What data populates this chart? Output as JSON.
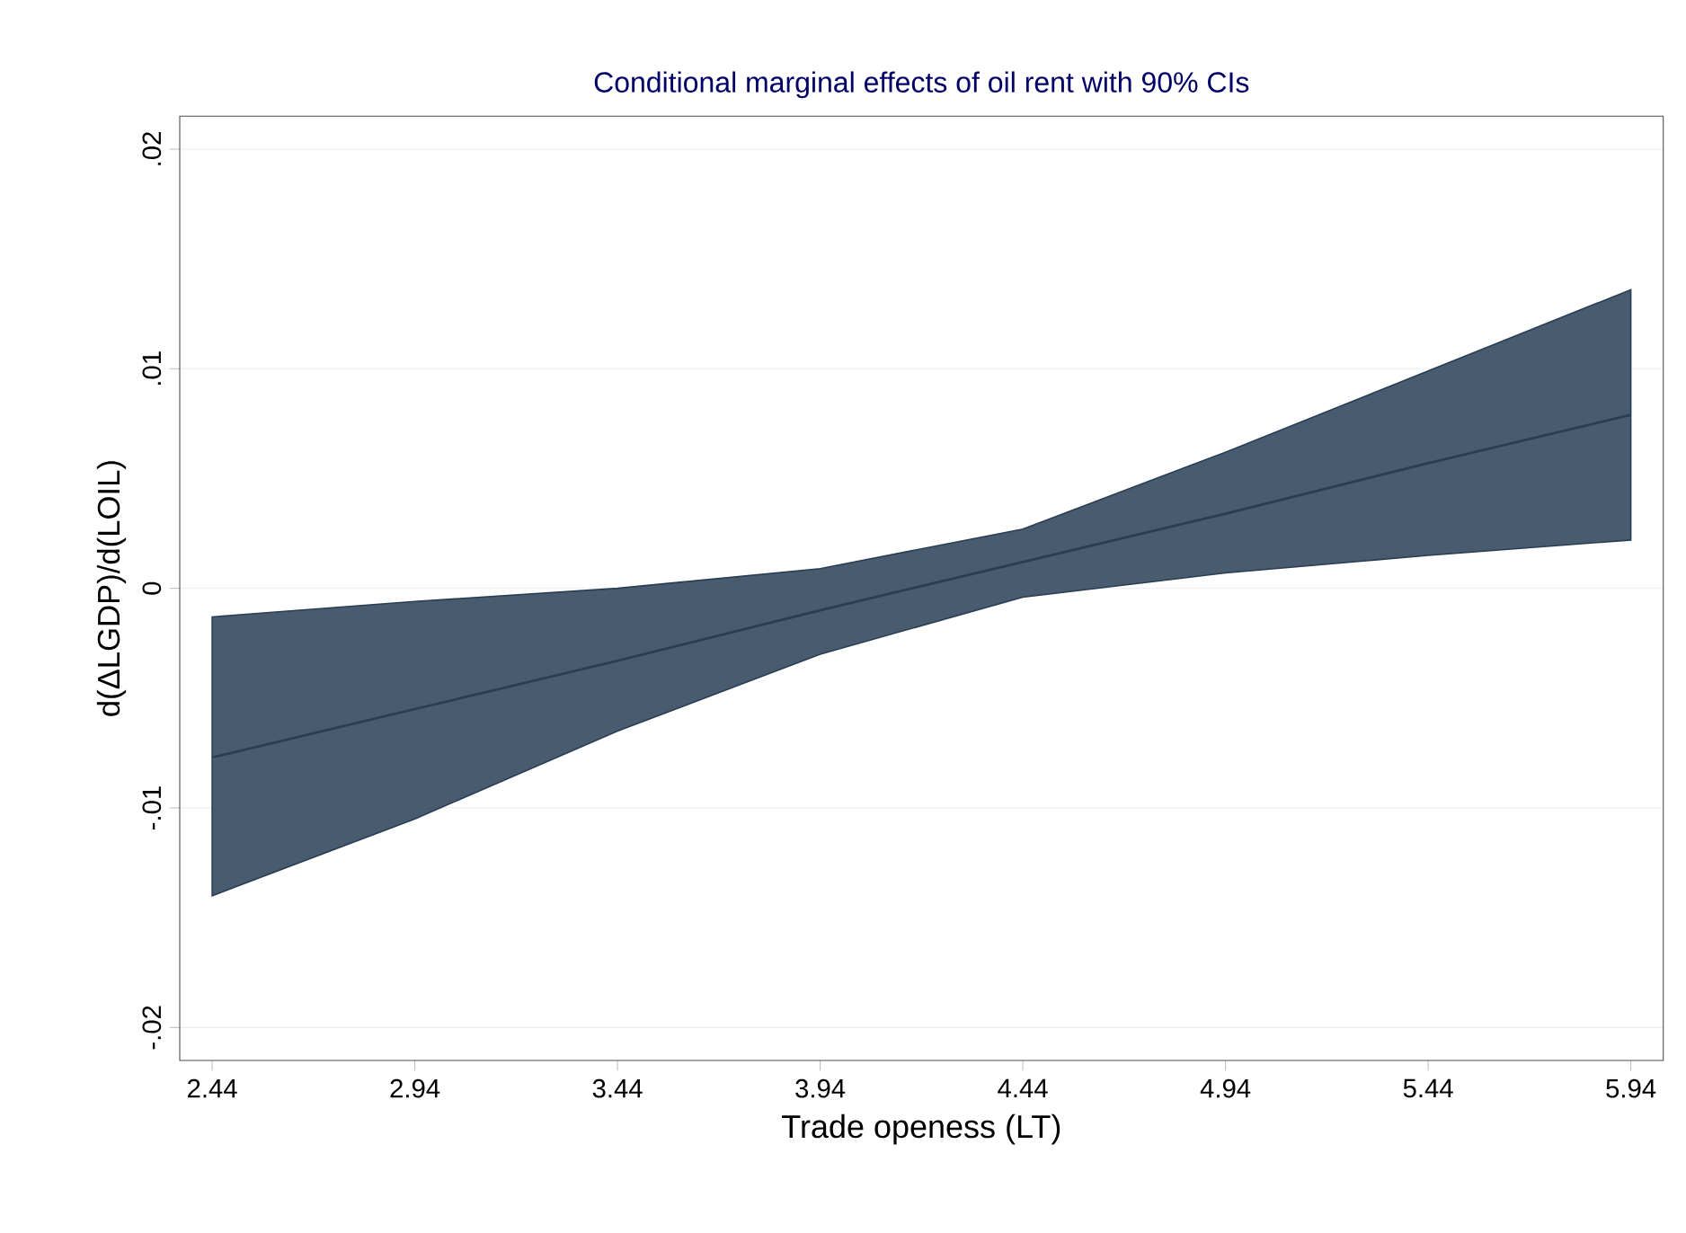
{
  "chart_data": {
    "type": "line",
    "title": "Conditional marginal effects of oil rent with 90% CIs",
    "xlabel": "Trade openess (LT)",
    "ylabel": "d(ΔLGDP)/d(LOIL)",
    "x": [
      2.44,
      2.94,
      3.44,
      3.94,
      4.44,
      4.94,
      5.44,
      5.94
    ],
    "series": [
      {
        "color": "#293e54",
        "values": [
          -0.0077,
          -0.0055,
          -0.0033,
          -0.001,
          0.0012,
          0.0034,
          0.0057,
          0.0079
        ],
        "lower": [
          -0.014,
          -0.0105,
          -0.0065,
          -0.003,
          -0.0004,
          0.0007,
          0.0015,
          0.0022
        ],
        "upper": [
          -0.0013,
          -0.0006,
          0.0,
          0.0009,
          0.0027,
          0.0062,
          0.0099,
          0.0136
        ]
      }
    ],
    "xlim": [
      2.36,
      6.02
    ],
    "ylim": [
      -0.0215,
      0.0215
    ],
    "xticks": [
      2.44,
      2.94,
      3.44,
      3.94,
      4.44,
      4.94,
      5.44,
      5.94
    ],
    "yticks": [
      {
        "value": -0.02,
        "label": "-.02"
      },
      {
        "value": -0.01,
        "label": "-.01"
      },
      {
        "value": 0,
        "label": "0"
      },
      {
        "value": 0.01,
        "label": ".01"
      },
      {
        "value": 0.02,
        "label": ".02"
      }
    ],
    "grid": "y",
    "legend": false,
    "marker": "none",
    "line_style": "solid"
  }
}
